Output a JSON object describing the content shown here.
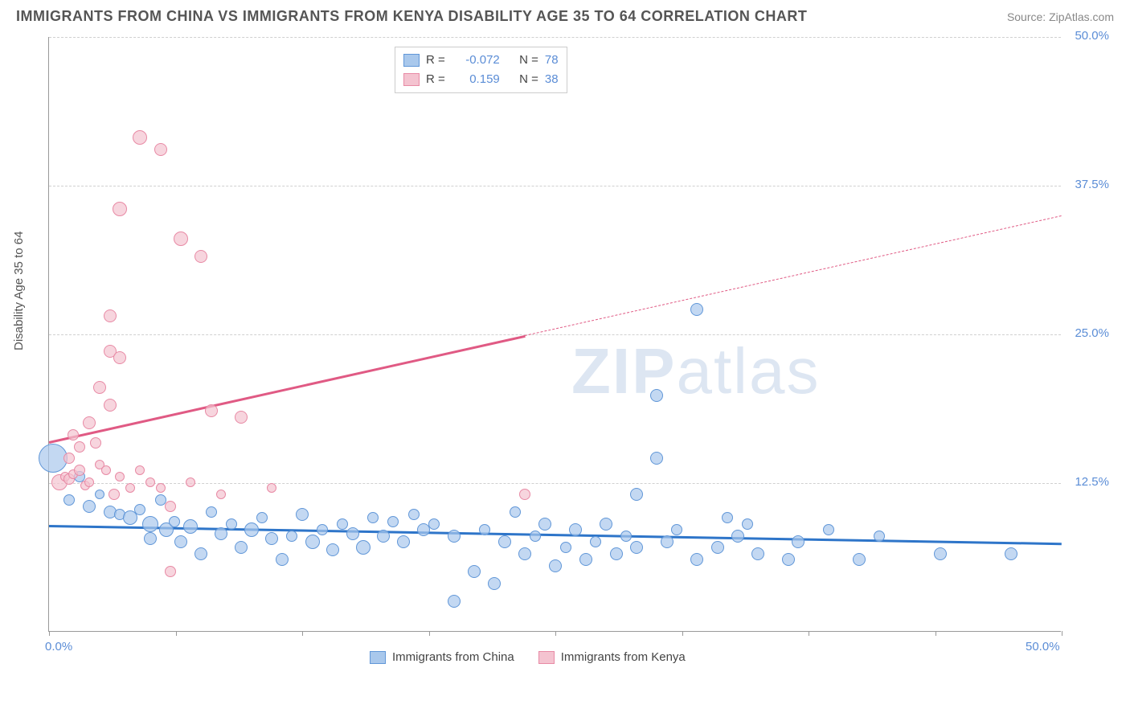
{
  "header": {
    "title": "IMMIGRANTS FROM CHINA VS IMMIGRANTS FROM KENYA DISABILITY AGE 35 TO 64 CORRELATION CHART",
    "source": "Source: ZipAtlas.com"
  },
  "chart": {
    "type": "scatter",
    "ylabel": "Disability Age 35 to 64",
    "xlim": [
      0,
      50
    ],
    "ylim": [
      0,
      50
    ],
    "x_ticks": [
      0,
      6.25,
      12.5,
      18.75,
      25,
      31.25,
      37.5,
      43.75,
      50
    ],
    "x_tick_labels": {
      "0": "0.0%",
      "50": "50.0%"
    },
    "y_ticks": [
      12.5,
      25,
      37.5,
      50
    ],
    "y_tick_labels": {
      "12.5": "12.5%",
      "25": "25.0%",
      "37.5": "37.5%",
      "50": "50.0%"
    },
    "grid_color": "#d0d0d0",
    "background_color": "#ffffff",
    "watermark": "ZIPatlas",
    "series": [
      {
        "name": "Immigrants from China",
        "color_fill": "#a9c8ecb3",
        "color_stroke": "#6197d8",
        "swatch_fill": "#a9c8ec",
        "swatch_stroke": "#6197d8",
        "R": "-0.072",
        "N": "78",
        "trend": {
          "x1": 0,
          "y1": 9.0,
          "x2": 50,
          "y2": 7.5,
          "color": "#2e75c9",
          "dash_from_x": null
        },
        "points": [
          {
            "x": 0.2,
            "y": 14.5,
            "r": 18
          },
          {
            "x": 1.0,
            "y": 11.0,
            "r": 7
          },
          {
            "x": 1.5,
            "y": 13.0,
            "r": 7
          },
          {
            "x": 2.0,
            "y": 10.5,
            "r": 8
          },
          {
            "x": 2.5,
            "y": 11.5,
            "r": 6
          },
          {
            "x": 3.0,
            "y": 10.0,
            "r": 8
          },
          {
            "x": 3.5,
            "y": 9.8,
            "r": 7
          },
          {
            "x": 4.0,
            "y": 9.5,
            "r": 9
          },
          {
            "x": 4.5,
            "y": 10.2,
            "r": 7
          },
          {
            "x": 5.0,
            "y": 7.8,
            "r": 8
          },
          {
            "x": 5.0,
            "y": 9.0,
            "r": 10
          },
          {
            "x": 5.5,
            "y": 11.0,
            "r": 7
          },
          {
            "x": 5.8,
            "y": 8.5,
            "r": 9
          },
          {
            "x": 6.2,
            "y": 9.2,
            "r": 7
          },
          {
            "x": 6.5,
            "y": 7.5,
            "r": 8
          },
          {
            "x": 7.0,
            "y": 8.8,
            "r": 9
          },
          {
            "x": 7.5,
            "y": 6.5,
            "r": 8
          },
          {
            "x": 8.0,
            "y": 10.0,
            "r": 7
          },
          {
            "x": 8.5,
            "y": 8.2,
            "r": 8
          },
          {
            "x": 9.0,
            "y": 9.0,
            "r": 7
          },
          {
            "x": 9.5,
            "y": 7.0,
            "r": 8
          },
          {
            "x": 10.0,
            "y": 8.5,
            "r": 9
          },
          {
            "x": 10.5,
            "y": 9.5,
            "r": 7
          },
          {
            "x": 11.0,
            "y": 7.8,
            "r": 8
          },
          {
            "x": 11.5,
            "y": 6.0,
            "r": 8
          },
          {
            "x": 12.0,
            "y": 8.0,
            "r": 7
          },
          {
            "x": 12.5,
            "y": 9.8,
            "r": 8
          },
          {
            "x": 13.0,
            "y": 7.5,
            "r": 9
          },
          {
            "x": 13.5,
            "y": 8.5,
            "r": 7
          },
          {
            "x": 14.0,
            "y": 6.8,
            "r": 8
          },
          {
            "x": 14.5,
            "y": 9.0,
            "r": 7
          },
          {
            "x": 15.0,
            "y": 8.2,
            "r": 8
          },
          {
            "x": 15.5,
            "y": 7.0,
            "r": 9
          },
          {
            "x": 16.0,
            "y": 9.5,
            "r": 7
          },
          {
            "x": 16.5,
            "y": 8.0,
            "r": 8
          },
          {
            "x": 17.0,
            "y": 9.2,
            "r": 7
          },
          {
            "x": 17.5,
            "y": 7.5,
            "r": 8
          },
          {
            "x": 18.0,
            "y": 9.8,
            "r": 7
          },
          {
            "x": 18.5,
            "y": 8.5,
            "r": 8
          },
          {
            "x": 19.0,
            "y": 9.0,
            "r": 7
          },
          {
            "x": 20.0,
            "y": 2.5,
            "r": 8
          },
          {
            "x": 20.0,
            "y": 8.0,
            "r": 8
          },
          {
            "x": 21.0,
            "y": 5.0,
            "r": 8
          },
          {
            "x": 21.5,
            "y": 8.5,
            "r": 7
          },
          {
            "x": 22.0,
            "y": 4.0,
            "r": 8
          },
          {
            "x": 22.5,
            "y": 7.5,
            "r": 8
          },
          {
            "x": 23.0,
            "y": 10.0,
            "r": 7
          },
          {
            "x": 23.5,
            "y": 6.5,
            "r": 8
          },
          {
            "x": 24.0,
            "y": 8.0,
            "r": 7
          },
          {
            "x": 24.5,
            "y": 9.0,
            "r": 8
          },
          {
            "x": 25.0,
            "y": 5.5,
            "r": 8
          },
          {
            "x": 25.5,
            "y": 7.0,
            "r": 7
          },
          {
            "x": 26.0,
            "y": 8.5,
            "r": 8
          },
          {
            "x": 26.5,
            "y": 6.0,
            "r": 8
          },
          {
            "x": 27.0,
            "y": 7.5,
            "r": 7
          },
          {
            "x": 27.5,
            "y": 9.0,
            "r": 8
          },
          {
            "x": 28.0,
            "y": 6.5,
            "r": 8
          },
          {
            "x": 28.5,
            "y": 8.0,
            "r": 7
          },
          {
            "x": 29.0,
            "y": 7.0,
            "r": 8
          },
          {
            "x": 29.0,
            "y": 11.5,
            "r": 8
          },
          {
            "x": 30.0,
            "y": 19.8,
            "r": 8
          },
          {
            "x": 30.0,
            "y": 14.5,
            "r": 8
          },
          {
            "x": 30.5,
            "y": 7.5,
            "r": 8
          },
          {
            "x": 31.0,
            "y": 8.5,
            "r": 7
          },
          {
            "x": 32.0,
            "y": 27.0,
            "r": 8
          },
          {
            "x": 32.0,
            "y": 6.0,
            "r": 8
          },
          {
            "x": 33.0,
            "y": 7.0,
            "r": 8
          },
          {
            "x": 33.5,
            "y": 9.5,
            "r": 7
          },
          {
            "x": 34.0,
            "y": 8.0,
            "r": 8
          },
          {
            "x": 34.5,
            "y": 9.0,
            "r": 7
          },
          {
            "x": 35.0,
            "y": 6.5,
            "r": 8
          },
          {
            "x": 36.5,
            "y": 6.0,
            "r": 8
          },
          {
            "x": 37.0,
            "y": 7.5,
            "r": 8
          },
          {
            "x": 38.5,
            "y": 8.5,
            "r": 7
          },
          {
            "x": 40.0,
            "y": 6.0,
            "r": 8
          },
          {
            "x": 41.0,
            "y": 8.0,
            "r": 7
          },
          {
            "x": 44.0,
            "y": 6.5,
            "r": 8
          },
          {
            "x": 47.5,
            "y": 6.5,
            "r": 8
          }
        ]
      },
      {
        "name": "Immigrants from Kenya",
        "color_fill": "#f4c3d0b3",
        "color_stroke": "#e88aa5",
        "swatch_fill": "#f4c3d0",
        "swatch_stroke": "#e88aa5",
        "R": "0.159",
        "N": "38",
        "trend": {
          "x1": 0,
          "y1": 16.0,
          "x2": 50,
          "y2": 35.0,
          "color": "#e05a84",
          "dash_from_x": 23.5
        },
        "points": [
          {
            "x": 0.5,
            "y": 12.5,
            "r": 10
          },
          {
            "x": 0.8,
            "y": 13.0,
            "r": 6
          },
          {
            "x": 1.0,
            "y": 12.8,
            "r": 7
          },
          {
            "x": 1.2,
            "y": 13.2,
            "r": 6
          },
          {
            "x": 1.5,
            "y": 13.5,
            "r": 7
          },
          {
            "x": 1.8,
            "y": 12.2,
            "r": 6
          },
          {
            "x": 1.0,
            "y": 14.5,
            "r": 7
          },
          {
            "x": 1.5,
            "y": 15.5,
            "r": 7
          },
          {
            "x": 1.2,
            "y": 16.5,
            "r": 7
          },
          {
            "x": 2.0,
            "y": 17.5,
            "r": 8
          },
          {
            "x": 2.5,
            "y": 14.0,
            "r": 6
          },
          {
            "x": 2.0,
            "y": 12.5,
            "r": 6
          },
          {
            "x": 2.3,
            "y": 15.8,
            "r": 7
          },
          {
            "x": 2.8,
            "y": 13.5,
            "r": 6
          },
          {
            "x": 3.0,
            "y": 19.0,
            "r": 8
          },
          {
            "x": 3.2,
            "y": 11.5,
            "r": 7
          },
          {
            "x": 2.5,
            "y": 20.5,
            "r": 8
          },
          {
            "x": 3.5,
            "y": 13.0,
            "r": 6
          },
          {
            "x": 3.0,
            "y": 23.5,
            "r": 8
          },
          {
            "x": 3.5,
            "y": 23.0,
            "r": 8
          },
          {
            "x": 4.0,
            "y": 12.0,
            "r": 6
          },
          {
            "x": 3.0,
            "y": 26.5,
            "r": 8
          },
          {
            "x": 4.5,
            "y": 13.5,
            "r": 6
          },
          {
            "x": 3.5,
            "y": 35.5,
            "r": 9
          },
          {
            "x": 5.0,
            "y": 12.5,
            "r": 6
          },
          {
            "x": 4.5,
            "y": 41.5,
            "r": 9
          },
          {
            "x": 5.5,
            "y": 40.5,
            "r": 8
          },
          {
            "x": 5.5,
            "y": 12.0,
            "r": 6
          },
          {
            "x": 6.0,
            "y": 10.5,
            "r": 7
          },
          {
            "x": 6.5,
            "y": 33.0,
            "r": 9
          },
          {
            "x": 7.5,
            "y": 31.5,
            "r": 8
          },
          {
            "x": 6.0,
            "y": 5.0,
            "r": 7
          },
          {
            "x": 7.0,
            "y": 12.5,
            "r": 6
          },
          {
            "x": 8.0,
            "y": 18.5,
            "r": 8
          },
          {
            "x": 8.5,
            "y": 11.5,
            "r": 6
          },
          {
            "x": 9.5,
            "y": 18.0,
            "r": 8
          },
          {
            "x": 11.0,
            "y": 12.0,
            "r": 6
          },
          {
            "x": 23.5,
            "y": 11.5,
            "r": 7
          }
        ]
      }
    ],
    "legend_bottom": [
      {
        "label": "Immigrants from China",
        "fill": "#a9c8ec",
        "stroke": "#6197d8"
      },
      {
        "label": "Immigrants from Kenya",
        "fill": "#f4c3d0",
        "stroke": "#e88aa5"
      }
    ]
  }
}
